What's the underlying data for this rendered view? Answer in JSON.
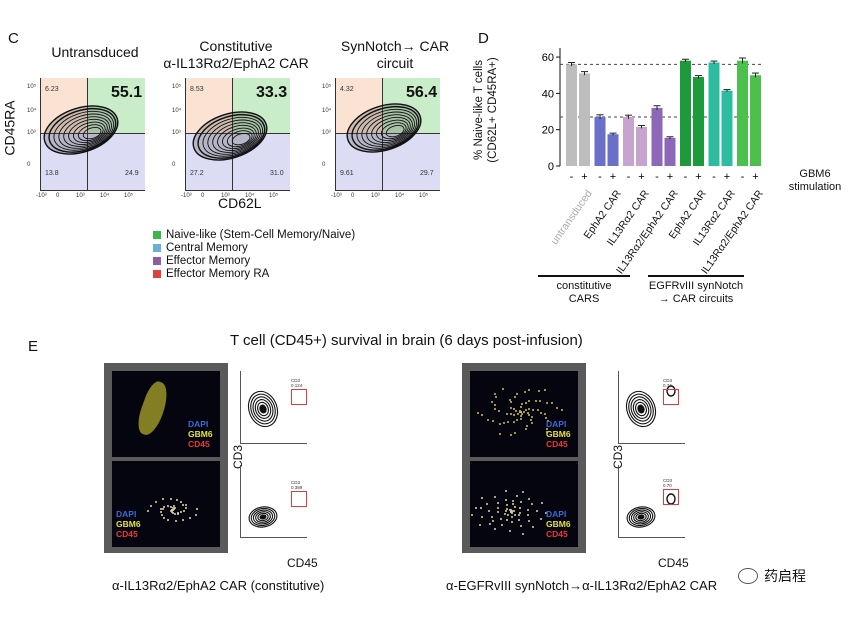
{
  "panelC": {
    "letter": "C",
    "titles": [
      "Untransduced",
      "Constitutive\nα-IL13Rα2/EphA2 CAR",
      "SynNotch→ CAR\ncircuit"
    ],
    "plots": [
      {
        "tl": "6.23",
        "tr": "55.1",
        "bl": "13.8",
        "br": "24.9"
      },
      {
        "tl": "8.53",
        "tr": "33.3",
        "bl": "27.2",
        "br": "31.0"
      },
      {
        "tl": "4.32",
        "tr": "56.4",
        "bl": "9.61",
        "br": "29.7"
      }
    ],
    "yaxis": "CD45RA",
    "xaxis": "CD62L",
    "yticks": [
      "10⁵",
      "10⁴",
      "10³",
      "0"
    ],
    "xticks": [
      "-10³",
      "0",
      "10³",
      "10⁴",
      "10⁵"
    ],
    "legend": [
      {
        "label": "Naive-like (Stem-Cell Memory/Naive)",
        "color": "#3cb54a"
      },
      {
        "label": "Central Memory",
        "color": "#6baed6"
      },
      {
        "label": "Effector Memory",
        "color": "#8e5ea2"
      },
      {
        "label": "Effector Memory RA",
        "color": "#e04040"
      }
    ]
  },
  "panelD": {
    "letter": "D",
    "ylabel": "% Naive-like T cells\n(CD62L+ CD45RA+)",
    "yticks": [
      "60",
      "40",
      "20",
      "0"
    ],
    "stim_label": "GBM6\nstimulation",
    "signs": [
      "-",
      "+"
    ],
    "groups": [
      "untransduced",
      "EphA2 CAR",
      "IL13Rα2 CAR",
      "IL13Rα2/EphA2 CAR",
      "EphA2 CAR",
      "IL13Rα2 CAR",
      "IL13Rα2/EphA2 CAR"
    ],
    "bracket1": "constitutive\nCARS",
    "bracket2": "EGFRvIII synNotch\n→ CAR circuits"
  },
  "chart_data": {
    "type": "bar",
    "categories": [
      "untransduced",
      "EphA2 CAR",
      "IL13Rα2 CAR",
      "IL13Rα2/EphA2 CAR",
      "EphA2 CAR",
      "IL13Rα2 CAR",
      "IL13Rα2/EphA2 CAR"
    ],
    "series": [
      {
        "values": [
          56,
          27,
          27,
          32,
          58,
          57,
          58
        ],
        "colors": [
          "#bdbdbd",
          "#6a6fc9",
          "#c7a3cf",
          "#8e68b8",
          "#1d9a3c",
          "#2ebca0",
          "#4cbf4c"
        ]
      },
      {
        "values": [
          51,
          17.5,
          21.5,
          15.5,
          49,
          41.5,
          50
        ],
        "colors": [
          "#bdbdbd",
          "#6a6fc9",
          "#c7a3cf",
          "#8e68b8",
          "#1d9a3c",
          "#2ebca0",
          "#4cbf4c"
        ]
      }
    ],
    "errors": [
      [
        1,
        1.2,
        1,
        1.2,
        0.8,
        0.8,
        1.5
      ],
      [
        1,
        0.6,
        0.8,
        0.6,
        0.8,
        0.6,
        1.2
      ]
    ],
    "reference_lines": [
      56,
      27
    ],
    "ylabel": "% Naive-like T cells (CD62L+ CD45RA+)",
    "ylim": [
      0,
      65
    ],
    "yticks": [
      0,
      20,
      40,
      60
    ]
  },
  "panelE": {
    "letter": "E",
    "title": "T cell (CD45+) survival in brain (6 days post-infusion)",
    "stain": [
      "DAPI",
      "GBM6",
      "CD45"
    ],
    "stain_colors": [
      "#3a6bd6",
      "#e8e23a",
      "#e83a3a"
    ],
    "ylabel": "CD3",
    "xlabel": "CD45",
    "left_caption": "α-IL13Rα2/EphA2 CAR (constitutive)",
    "right_caption": "α-EGFRvIII synNotch→α-IL13Rα2/EphA2 CAR",
    "gate_vals": [
      "CD3\n0.124",
      "CD3\n0.389",
      "CD3\n0.74",
      "CD3\n0.70"
    ]
  },
  "watermark": "药启程"
}
